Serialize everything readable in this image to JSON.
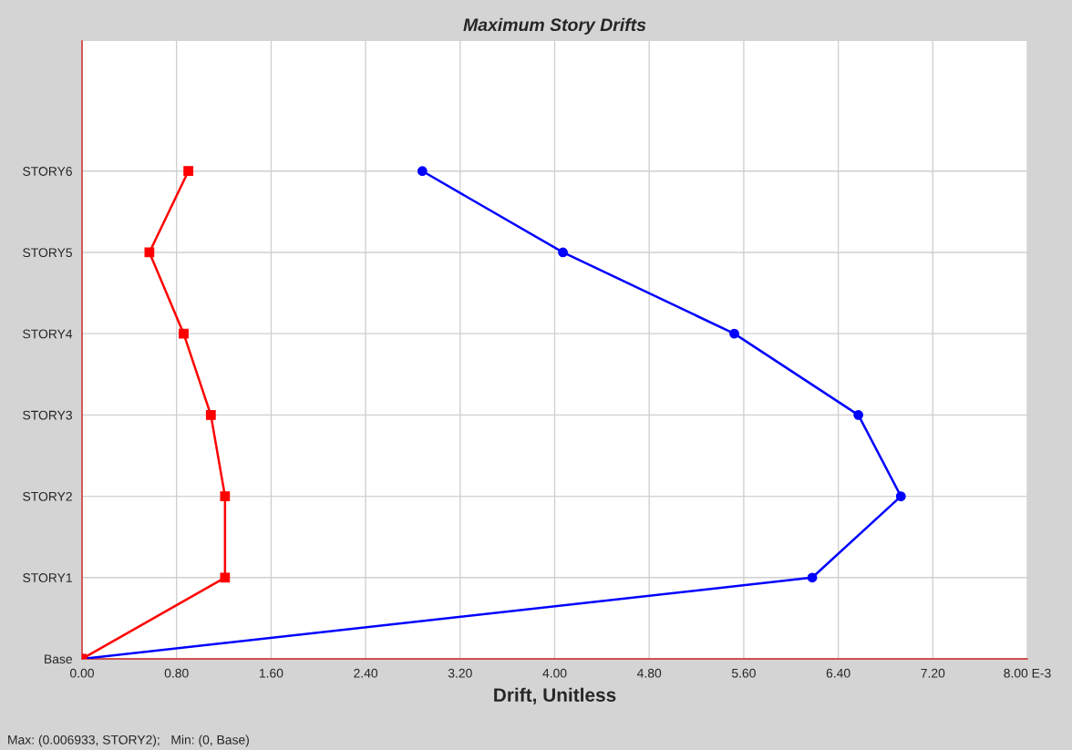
{
  "chart_data": {
    "type": "line",
    "orientation": "horizontal",
    "title": "Maximum Story Drifts",
    "xlabel": "Drift, Unitless",
    "annotations": [
      "Max: (0.006933, STORY2);   Min: (0, Base)"
    ],
    "categories": [
      "STORY6",
      "STORY5",
      "STORY4",
      "STORY3",
      "STORY2",
      "STORY1",
      "Base"
    ],
    "series": [
      {
        "color": "#0000ff",
        "marker": "circle",
        "values": [
          2.88,
          4.07,
          5.52,
          6.57,
          6.93,
          6.18,
          0
        ]
      },
      {
        "color": "#ff0000",
        "marker": "square",
        "values": [
          0.9,
          0.57,
          0.86,
          1.09,
          1.21,
          1.21,
          0
        ]
      }
    ],
    "xlim": [
      0,
      8
    ],
    "xticks": [
      {
        "value": 0,
        "label": "0.00"
      },
      {
        "value": 0.8,
        "label": "0.80"
      },
      {
        "value": 1.6,
        "label": "1.60"
      },
      {
        "value": 2.4,
        "label": "2.40"
      },
      {
        "value": 3.2,
        "label": "3.20"
      },
      {
        "value": 4,
        "label": "4.00"
      },
      {
        "value": 4.8,
        "label": "4.80"
      },
      {
        "value": 5.6,
        "label": "5.60"
      },
      {
        "value": 6.4,
        "label": "6.40"
      },
      {
        "value": 7.2,
        "label": "7.20"
      },
      {
        "value": 8,
        "label": "8.00 E-3"
      }
    ],
    "grid": true,
    "line_style": "solid"
  }
}
